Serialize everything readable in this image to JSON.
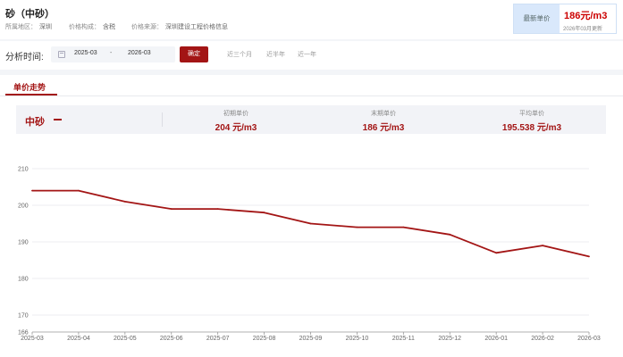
{
  "header": {
    "title": "砂（中砂）",
    "region_label": "所属地区：",
    "region_value": "深圳",
    "composition_label": "价格构成：",
    "composition_value": "含税",
    "source_label": "价格来源：",
    "source_value": "深圳建设工程价格信息"
  },
  "latest": {
    "label": "最新单价",
    "value": "186元/m3",
    "updated": "2026年03月更新"
  },
  "filter": {
    "label": "分析时间:",
    "start": "2025-03",
    "separator": "-",
    "end": "2026-03",
    "confirm": "确定",
    "quick": [
      "近三个月",
      "近半年",
      "近一年"
    ]
  },
  "tabs": {
    "active": "单价走势"
  },
  "summary": {
    "name": "中砂",
    "initial_label": "初期单价",
    "initial_value": "204 元/m3",
    "final_label": "末期单价",
    "final_value": "186 元/m3",
    "average_label": "平均单价",
    "average_value": "195.538 元/m3"
  },
  "colors": {
    "accent": "#a31515",
    "grid": "#e6e8ec"
  },
  "chart_data": {
    "type": "line",
    "x": [
      "2025-03",
      "2025-04",
      "2025-05",
      "2025-06",
      "2025-07",
      "2025-08",
      "2025-09",
      "2025-10",
      "2025-11",
      "2025-12",
      "2026-01",
      "2026-02",
      "2026-03"
    ],
    "series": [
      {
        "name": "中砂",
        "values": [
          204,
          204,
          201,
          199,
          199,
          198,
          195,
          194,
          194,
          192,
          187,
          189,
          186
        ]
      }
    ],
    "yticks": [
      166,
      170,
      180,
      190,
      200,
      210
    ],
    "ylim": [
      166,
      210
    ],
    "grid": true
  }
}
